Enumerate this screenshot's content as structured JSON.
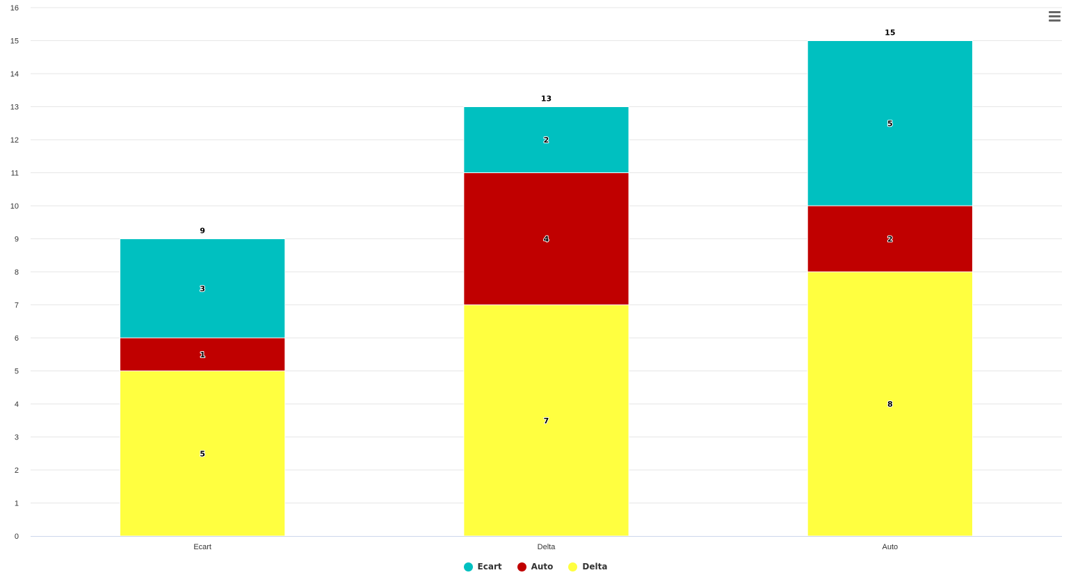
{
  "chart_data": {
    "type": "bar",
    "stacked": true,
    "title": "",
    "xlabel": "",
    "ylabel": "",
    "categories": [
      "Ecart",
      "Delta",
      "Auto"
    ],
    "series": [
      {
        "name": "Ecart",
        "color": "#00C0C0",
        "values": [
          3,
          2,
          5
        ]
      },
      {
        "name": "Auto",
        "color": "#C00000",
        "values": [
          1,
          4,
          2
        ]
      },
      {
        "name": "Delta",
        "color": "#FFFF40",
        "values": [
          5,
          7,
          8
        ]
      }
    ],
    "stack_order_bottom_to_top": [
      "Delta",
      "Auto",
      "Ecart"
    ],
    "totals": [
      9,
      13,
      15
    ],
    "ylim": [
      0,
      16
    ],
    "yticks": [
      0,
      1,
      2,
      3,
      4,
      5,
      6,
      7,
      8,
      9,
      10,
      11,
      12,
      13,
      14,
      15,
      16
    ],
    "grid": true,
    "legend_position": "bottom-center"
  },
  "menu": {
    "icon": "hamburger-menu-icon"
  }
}
